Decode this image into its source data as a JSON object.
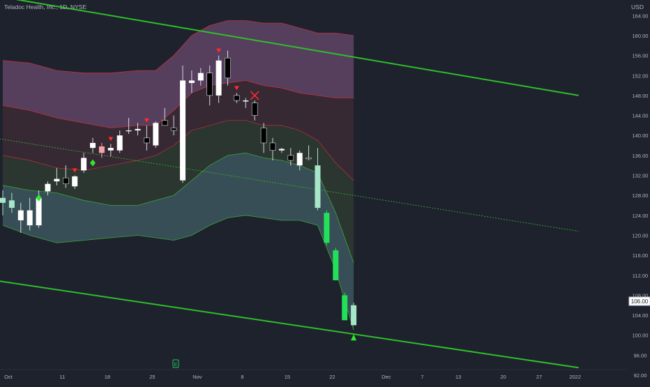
{
  "header": {
    "title": "Teladoc Health, Inc., 1D, NYSE",
    "currency": "USD"
  },
  "price_tag": "106.00",
  "colors": {
    "background": "#1e222d",
    "channel": "#2fbf2a",
    "upper_band_fill": "#6a4a6e",
    "upper_band_edge": "#c0313a",
    "lower_band_fill": "#3e5a60",
    "mid_band_fill": "#2f3d30",
    "mid_band_edge": "#3aa33a",
    "bull_candle": "#ffffff",
    "bear_candle": "#000000",
    "bright_green": "#22e05a",
    "light_green": "#a8e6c8",
    "pink_candle": "#f4a3a8",
    "sell_marker": "#ff2b2b",
    "buy_marker": "#2ee82e"
  },
  "chart_data": {
    "type": "candlestick",
    "title": "Teladoc Health, Inc., 1D, NYSE",
    "ylabel": "USD",
    "ylim": [
      92,
      166
    ],
    "y_ticks": [
      "164.00",
      "160.00",
      "156.00",
      "152.00",
      "148.00",
      "144.00",
      "140.00",
      "136.00",
      "132.00",
      "128.00",
      "124.00",
      "120.00",
      "116.00",
      "112.00",
      "108.00",
      "104.00",
      "100.00",
      "96.00",
      "92.00"
    ],
    "x_ticks": [
      {
        "label": "Oct",
        "bar": 0
      },
      {
        "label": "11",
        "bar": 6
      },
      {
        "label": "18",
        "bar": 11
      },
      {
        "label": "25",
        "bar": 16
      },
      {
        "label": "Nov",
        "bar": 21
      },
      {
        "label": "8",
        "bar": 26
      },
      {
        "label": "15",
        "bar": 31
      },
      {
        "label": "22",
        "bar": 36
      },
      {
        "label": "Dec",
        "bar": 42
      },
      {
        "label": "7",
        "bar": 46
      },
      {
        "label": "13",
        "bar": 50
      },
      {
        "label": "20",
        "bar": 55
      },
      {
        "label": "27",
        "bar": 59
      },
      {
        "label": "2022",
        "bar": 63
      }
    ],
    "candles": [
      {
        "o": 126.5,
        "h": 129.0,
        "l": 124.0,
        "c": 127.5,
        "color": "light_green"
      },
      {
        "o": 127.0,
        "h": 128.5,
        "l": 124.5,
        "c": 125.5,
        "color": "light_green"
      },
      {
        "o": 125.0,
        "h": 126.5,
        "l": 120.5,
        "c": 123.0,
        "color": "bull_candle"
      },
      {
        "o": 122.0,
        "h": 127.5,
        "l": 121.0,
        "c": 125.0,
        "color": "bull_candle"
      },
      {
        "o": 122.0,
        "h": 129.0,
        "l": 121.5,
        "c": 127.5,
        "color": "bull_candle"
      },
      {
        "o": 128.8,
        "h": 130.8,
        "l": 128.0,
        "c": 130.3,
        "color": "bull_candle"
      },
      {
        "o": 130.8,
        "h": 133.5,
        "l": 130.0,
        "c": 131.3,
        "color": "bull_candle"
      },
      {
        "o": 131.5,
        "h": 134.0,
        "l": 129.5,
        "c": 130.3,
        "color": "bear_candle"
      },
      {
        "o": 129.8,
        "h": 132.0,
        "l": 129.3,
        "c": 131.8,
        "color": "bull_candle"
      },
      {
        "o": 133.0,
        "h": 136.5,
        "l": 132.5,
        "c": 135.5,
        "color": "bull_candle"
      },
      {
        "o": 137.5,
        "h": 139.5,
        "l": 136.5,
        "c": 138.5,
        "color": "bull_candle"
      },
      {
        "o": 137.8,
        "h": 138.5,
        "l": 135.5,
        "c": 136.5,
        "color": "pink_candle"
      },
      {
        "o": 137.0,
        "h": 138.3,
        "l": 135.8,
        "c": 137.5,
        "color": "bull_candle"
      },
      {
        "o": 137.0,
        "h": 141.0,
        "l": 136.5,
        "c": 140.0,
        "color": "bull_candle"
      },
      {
        "o": 141.0,
        "h": 143.5,
        "l": 140.3,
        "c": 141.0,
        "color": "bull_candle"
      },
      {
        "o": 141.0,
        "h": 142.5,
        "l": 140.0,
        "c": 141.3,
        "color": "bull_candle"
      },
      {
        "o": 139.5,
        "h": 142.0,
        "l": 137.0,
        "c": 138.5,
        "color": "bear_candle"
      },
      {
        "o": 138.0,
        "h": 142.8,
        "l": 137.5,
        "c": 142.5,
        "color": "bull_candle"
      },
      {
        "o": 143.0,
        "h": 145.5,
        "l": 142.5,
        "c": 142.0,
        "color": "bear_candle"
      },
      {
        "o": 141.0,
        "h": 144.0,
        "l": 140.0,
        "c": 141.5,
        "color": "bear_candle"
      },
      {
        "o": 131.0,
        "h": 154.0,
        "l": 130.5,
        "c": 151.0,
        "color": "bull_candle"
      },
      {
        "o": 151.0,
        "h": 153.0,
        "l": 148.5,
        "c": 150.5,
        "color": "bull_candle"
      },
      {
        "o": 151.0,
        "h": 153.5,
        "l": 150.0,
        "c": 152.5,
        "color": "bull_candle"
      },
      {
        "o": 152.5,
        "h": 154.0,
        "l": 146.0,
        "c": 148.0,
        "color": "bear_candle"
      },
      {
        "o": 148.0,
        "h": 156.0,
        "l": 146.5,
        "c": 155.0,
        "color": "bull_candle"
      },
      {
        "o": 155.5,
        "h": 157.0,
        "l": 150.0,
        "c": 151.5,
        "color": "bear_candle"
      },
      {
        "o": 148.0,
        "h": 148.5,
        "l": 146.5,
        "c": 147.0,
        "color": "bear_candle"
      },
      {
        "o": 147.0,
        "h": 147.5,
        "l": 145.5,
        "c": 146.8,
        "color": "bull_candle"
      },
      {
        "o": 146.5,
        "h": 147.0,
        "l": 143.0,
        "c": 144.0,
        "color": "bear_candle"
      },
      {
        "o": 141.5,
        "h": 142.5,
        "l": 136.5,
        "c": 138.5,
        "color": "bear_candle"
      },
      {
        "o": 138.5,
        "h": 139.5,
        "l": 135.0,
        "c": 137.0,
        "color": "bear_candle"
      },
      {
        "o": 137.0,
        "h": 137.5,
        "l": 136.5,
        "c": 137.3,
        "color": "bull_candle"
      },
      {
        "o": 136.0,
        "h": 137.5,
        "l": 134.0,
        "c": 135.0,
        "color": "bear_candle"
      },
      {
        "o": 136.5,
        "h": 137.0,
        "l": 133.0,
        "c": 134.0,
        "color": "bull_candle"
      },
      {
        "o": 135.5,
        "h": 138.0,
        "l": 135.0,
        "c": 135.3,
        "color": "bear_candle"
      },
      {
        "o": 134.0,
        "h": 137.5,
        "l": 125.0,
        "c": 125.5,
        "color": "light_green"
      },
      {
        "o": 124.5,
        "h": 125.0,
        "l": 118.0,
        "c": 118.5,
        "color": "bright_green"
      },
      {
        "o": 117.0,
        "h": 117.5,
        "l": 111.0,
        "c": 111.0,
        "color": "bright_green"
      },
      {
        "o": 108.0,
        "h": 108.5,
        "l": 103.0,
        "c": 103.0,
        "color": "bright_green"
      },
      {
        "o": 102.0,
        "h": 106.5,
        "l": 102.0,
        "c": 106.0,
        "color": "light_green"
      }
    ],
    "upper_band": {
      "top": [
        [
          0,
          155
        ],
        [
          3,
          154.5
        ],
        [
          6,
          153
        ],
        [
          9,
          152.5
        ],
        [
          12,
          152.5
        ],
        [
          15,
          153
        ],
        [
          17,
          153
        ],
        [
          19,
          156
        ],
        [
          21,
          160
        ],
        [
          23,
          162
        ],
        [
          25,
          163
        ],
        [
          27,
          163
        ],
        [
          29,
          162.5
        ],
        [
          31,
          162.5
        ],
        [
          33,
          161.5
        ],
        [
          35,
          160.5
        ],
        [
          37,
          160.5
        ],
        [
          39,
          160
        ]
      ],
      "bottom": [
        [
          0,
          146
        ],
        [
          3,
          145
        ],
        [
          6,
          143.5
        ],
        [
          9,
          142.5
        ],
        [
          12,
          141.5
        ],
        [
          15,
          142
        ],
        [
          17,
          142
        ],
        [
          19,
          145
        ],
        [
          21,
          148.5
        ],
        [
          23,
          150
        ],
        [
          25,
          150.5
        ],
        [
          27,
          151
        ],
        [
          29,
          150
        ],
        [
          31,
          149.5
        ],
        [
          33,
          148.5
        ],
        [
          35,
          148
        ],
        [
          37,
          147.5
        ],
        [
          39,
          147.5
        ]
      ]
    },
    "mid_band": {
      "top": [
        [
          0,
          146
        ],
        [
          3,
          145
        ],
        [
          6,
          143.5
        ],
        [
          9,
          142.5
        ],
        [
          12,
          141.5
        ],
        [
          15,
          142
        ],
        [
          17,
          142
        ],
        [
          19,
          145
        ],
        [
          21,
          148.5
        ],
        [
          23,
          150
        ],
        [
          25,
          150.5
        ],
        [
          27,
          151
        ],
        [
          29,
          150
        ],
        [
          31,
          149.5
        ],
        [
          33,
          148.5
        ],
        [
          35,
          148
        ],
        [
          37,
          147.5
        ],
        [
          39,
          147.5
        ]
      ],
      "bottom": [
        [
          0,
          136
        ],
        [
          3,
          135
        ],
        [
          6,
          133.5
        ],
        [
          9,
          133
        ],
        [
          12,
          134
        ],
        [
          15,
          135
        ],
        [
          17,
          136
        ],
        [
          19,
          138
        ],
        [
          21,
          141
        ],
        [
          23,
          142
        ],
        [
          25,
          143
        ],
        [
          27,
          143
        ],
        [
          29,
          142
        ],
        [
          31,
          142
        ],
        [
          33,
          141
        ],
        [
          35,
          139
        ],
        [
          37,
          134.5
        ],
        [
          39,
          131
        ]
      ]
    },
    "lower_band": {
      "top": [
        [
          0,
          130
        ],
        [
          3,
          129
        ],
        [
          6,
          128.5
        ],
        [
          9,
          127
        ],
        [
          12,
          126
        ],
        [
          15,
          126
        ],
        [
          17,
          127
        ],
        [
          19,
          128
        ],
        [
          21,
          131
        ],
        [
          23,
          134
        ],
        [
          25,
          136
        ],
        [
          27,
          136.5
        ],
        [
          29,
          135.5
        ],
        [
          31,
          135
        ],
        [
          33,
          134
        ],
        [
          35,
          132.5
        ],
        [
          37,
          124.5
        ],
        [
          39,
          114.5
        ]
      ],
      "bottom": [
        [
          0,
          122
        ],
        [
          3,
          120
        ],
        [
          6,
          118.5
        ],
        [
          9,
          119
        ],
        [
          12,
          119.5
        ],
        [
          15,
          120
        ],
        [
          17,
          119.5
        ],
        [
          19,
          119
        ],
        [
          21,
          120
        ],
        [
          23,
          122
        ],
        [
          25,
          123.5
        ],
        [
          27,
          124
        ],
        [
          29,
          123.5
        ],
        [
          31,
          123
        ],
        [
          33,
          123
        ],
        [
          35,
          122
        ],
        [
          37,
          113
        ],
        [
          39,
          101
        ]
      ]
    },
    "channel_upper": [
      [
        -1,
        168
      ],
      [
        64,
        148
      ]
    ],
    "channel_lower": [
      [
        -1,
        111
      ],
      [
        64,
        93.5
      ]
    ],
    "channel_mid": [
      [
        -1,
        139.5
      ],
      [
        64,
        120.8
      ]
    ],
    "projection_start_bar": 39.5,
    "sell_signals": [
      8,
      12,
      16,
      24,
      26
    ],
    "exit_signal": {
      "bar": 28,
      "price": 148.0
    },
    "buy_signals": [
      {
        "bar": 4,
        "price": 127.5
      },
      {
        "bar": 10,
        "price": 134.5
      }
    ],
    "buy_triangle": {
      "bar": 39,
      "price": 99.5
    }
  }
}
